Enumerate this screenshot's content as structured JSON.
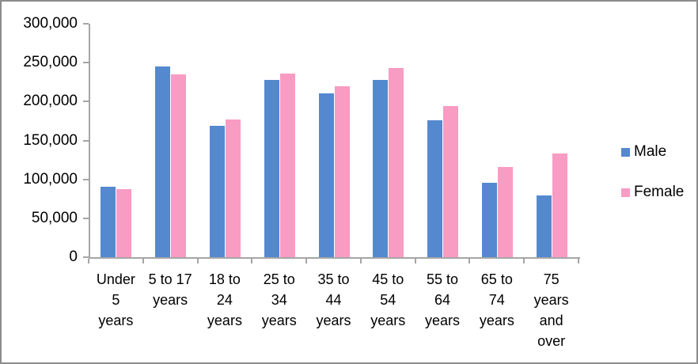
{
  "chart_data": {
    "type": "bar",
    "title": "",
    "categories": [
      "Under 5 years",
      "5 to 17 years",
      "18 to 24 years",
      "25 to 34 years",
      "35 to 44 years",
      "45 to 54 years",
      "55 to 64 years",
      "65 to 74 years",
      "75 years and over"
    ],
    "category_labels": [
      "Under\n5\nyears",
      "5 to 17\nyears",
      "18 to\n24\nyears",
      "25 to\n34\nyears",
      "35 to\n44\nyears",
      "45 to\n54\nyears",
      "55 to\n64\nyears",
      "65 to\n74\nyears",
      "75\nyears\nand\nover"
    ],
    "series": [
      {
        "name": "Male",
        "color": "#5489D0",
        "values": [
          90000,
          245000,
          169000,
          228000,
          211000,
          228000,
          176000,
          96000,
          79000
        ]
      },
      {
        "name": "Female",
        "color": "#F89CC3",
        "values": [
          87000,
          235000,
          177000,
          236000,
          220000,
          243000,
          194000,
          116000,
          133000
        ]
      }
    ],
    "ylim": [
      0,
      300000
    ],
    "yticks": [
      0,
      50000,
      100000,
      150000,
      200000,
      250000,
      300000
    ],
    "ytick_labels": [
      "0",
      "50,000",
      "100,000",
      "150,000",
      "200,000",
      "250,000",
      "300,000"
    ],
    "grid": false,
    "legend_position": "right"
  },
  "colors": {
    "male": "#5489D0",
    "female": "#F89CC3",
    "axis": "#A6A6A6",
    "text": "#000000",
    "frame_border": "#8C8C8C",
    "background": "#FFFFFF"
  }
}
